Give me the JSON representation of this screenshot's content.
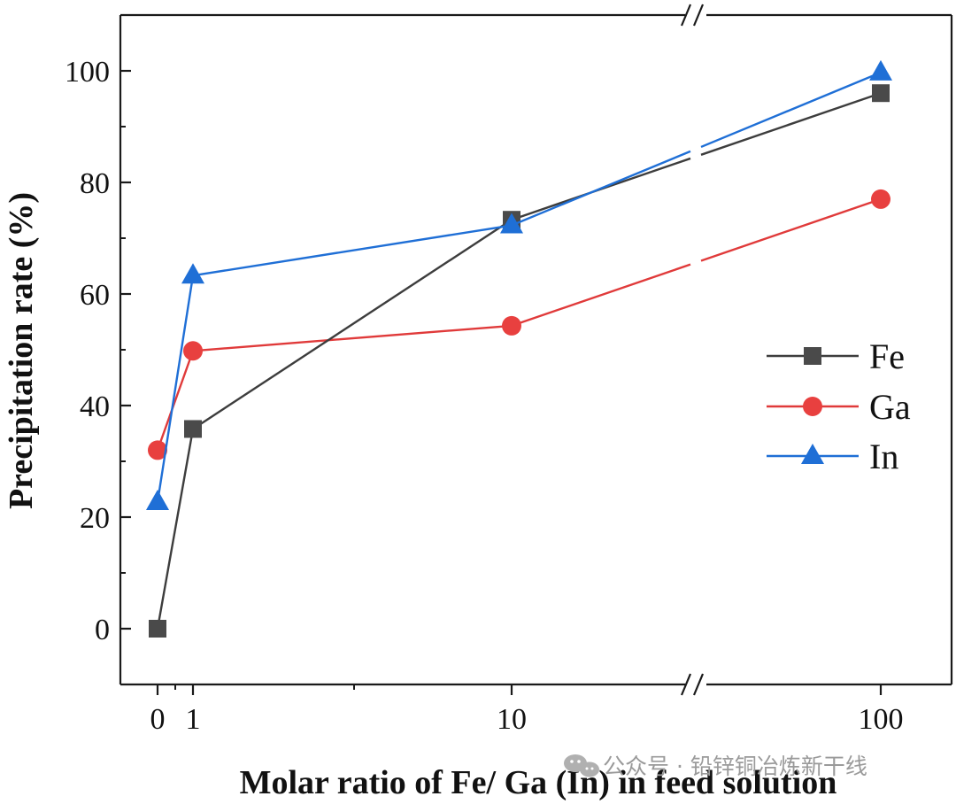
{
  "chart_data": {
    "type": "line",
    "title": "",
    "xlabel": "Molar ratio of Fe/ Ga (In) in feed solution",
    "ylabel": "Precipitation rate (%)",
    "ylim": [
      -10,
      110
    ],
    "x_categories": [
      "0",
      "1",
      "10",
      "100"
    ],
    "x_break_after": "10",
    "y_ticks": [
      0,
      20,
      40,
      60,
      80,
      100
    ],
    "y_tick_labels": [
      "0",
      "20",
      "40",
      "60",
      "80",
      "100"
    ],
    "legend_position": "right-center",
    "series": [
      {
        "name": "Fe",
        "marker": "square",
        "line_color": "#3d3d3d",
        "marker_color": "#4a4a4a",
        "values": [
          0,
          35.8,
          73.3,
          96
        ]
      },
      {
        "name": "Ga",
        "marker": "circle",
        "line_color": "#e03a3a",
        "marker_color": "#e8403f",
        "values": [
          32,
          49.8,
          54.3,
          77
        ]
      },
      {
        "name": "In",
        "marker": "triangle",
        "line_color": "#1f6fd6",
        "marker_color": "#1f6fd6",
        "values": [
          22.7,
          63.3,
          72.3,
          99.7
        ]
      }
    ]
  },
  "watermark": {
    "text": "公众号 · 铅锌铜冶炼新干线",
    "icon": "wechat-icon"
  }
}
